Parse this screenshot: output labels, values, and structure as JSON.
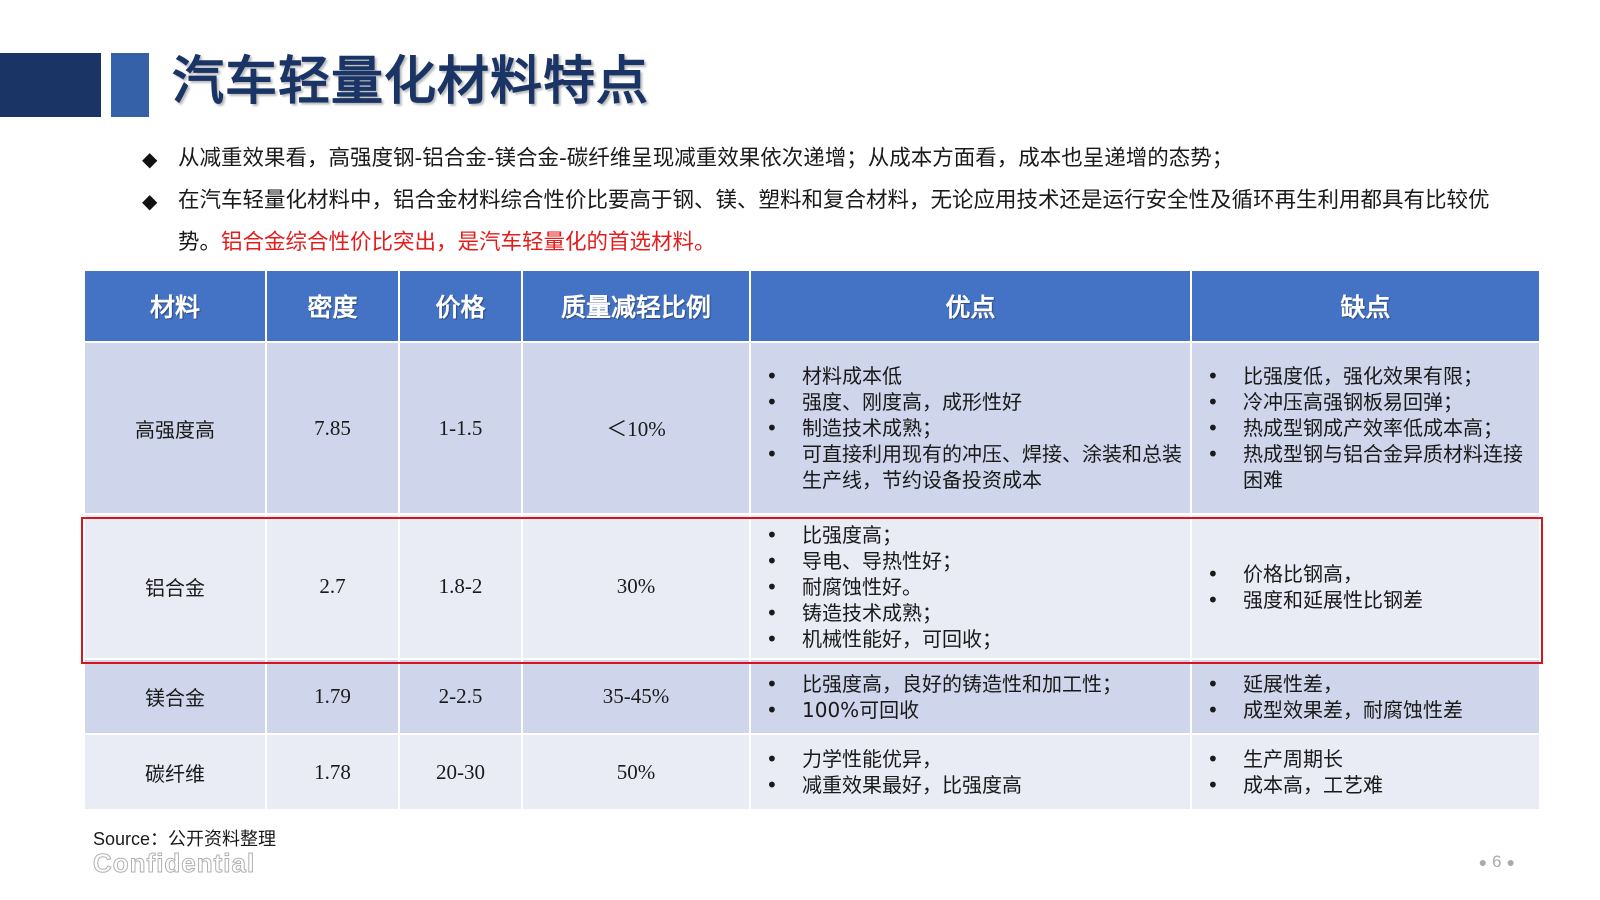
{
  "slide": {
    "title": "汽车轻量化材料特点",
    "bullets": [
      {
        "text": "从减重效果看，高强度钢-铝合金-镁合金-碳纤维呈现减重效果依次递增；从成本方面看，成本也呈递增的态势；",
        "highlight": ""
      },
      {
        "text": "在汽车轻量化材料中，铝合金材料综合性价比要高于钢、镁、塑料和复合材料，无论应用技术还是运行安全性及循环再生利用都具有比较优势。",
        "highlight": "铝合金综合性价比突出，是汽车轻量化的首选材料。"
      }
    ],
    "bullet_glyph": "◆"
  },
  "table": {
    "headers": [
      "材料",
      "密度",
      "价格",
      "质量减轻比例",
      "优点",
      "缺点"
    ],
    "rows": [
      {
        "material": "高强度高",
        "density": "7.85",
        "price": "1-1.5",
        "reduction": "＜10%",
        "pros": [
          "材料成本低",
          "强度、刚度高，成形性好",
          "制造技术成熟；",
          "可直接利用现有的冲压、焊接、涂装和总装生产线，节约设备投资成本"
        ],
        "cons": [
          "比强度低，强化效果有限；",
          "冷冲压高强钢板易回弹；",
          "热成型钢成产效率低成本高；",
          "热成型钢与铝合金异质材料连接困难"
        ]
      },
      {
        "material": "铝合金",
        "density": "2.7",
        "price": "1.8-2",
        "reduction": "30%",
        "pros": [
          "比强度高；",
          "导电、导热性好；",
          "耐腐蚀性好。",
          "铸造技术成熟；",
          "机械性能好，可回收；"
        ],
        "cons": [
          "价格比钢高，",
          "强度和延展性比钢差"
        ]
      },
      {
        "material": "镁合金",
        "density": "1.79",
        "price": "2-2.5",
        "reduction": "35-45%",
        "pros": [
          "比强度高，良好的铸造性和加工性；",
          "100%可回收"
        ],
        "cons": [
          "延展性差，",
          "成型效果差，耐腐蚀性差"
        ]
      },
      {
        "material": "碳纤维",
        "density": "1.78",
        "price": "20-30",
        "reduction": "50%",
        "pros": [
          "力学性能优异，",
          "减重效果最好，比强度高"
        ],
        "cons": [
          "生产周期长",
          "成本高，工艺难"
        ]
      }
    ]
  },
  "footer": {
    "source": "Source：公开资料整理",
    "confidential": "Confidential",
    "page": "6"
  },
  "colors": {
    "title": "#1b3466",
    "header_bg": "#4472c4",
    "row_dark": "#cfd5ea",
    "row_light": "#e9ebf5",
    "highlight_border": "#d8151d",
    "highlight_text": "#e41c1c"
  }
}
